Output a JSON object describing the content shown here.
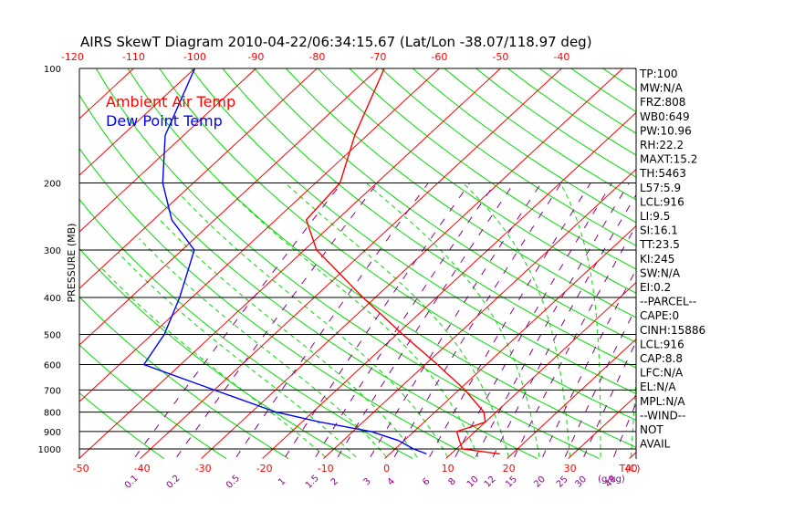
{
  "title": "AIRS SkewT Diagram 2010-04-22/06:34:15.67 (Lat/Lon -38.07/118.97 deg)",
  "colors": {
    "isotherm": "#ff0000",
    "dry_adiabat": "#00dd00",
    "moist_adiabat": "#00dd00",
    "mixing_ratio": "#8b008b",
    "temp_profile": "#ff0000",
    "dew_profile": "#0000ff",
    "isobar": "#000000"
  },
  "legend": [
    {
      "label": "Ambient Air Temp",
      "color": "#ff0000"
    },
    {
      "label": "Dew Point Temp",
      "color": "#0000ff"
    }
  ],
  "chart_data": {
    "type": "line",
    "title": "AIRS SkewT Diagram 2010-04-22/06:34:15.67 (Lat/Lon -38.07/118.97 deg)",
    "ylabel": "PRESSURE (MB)",
    "xlabel": "T(C)",
    "mixing_ratio_label": "(g/kg)",
    "y_scale": "log",
    "pressure_ticks": [
      100,
      200,
      300,
      400,
      500,
      600,
      700,
      800,
      900,
      1000
    ],
    "isobars": [
      200,
      300,
      400,
      500,
      600,
      700,
      800,
      900,
      1000
    ],
    "top_temp_ticks": [
      -120,
      -110,
      -100,
      -90,
      -80,
      -70,
      -60,
      -50,
      -40
    ],
    "bottom_temp_ticks": [
      -50,
      -40,
      -30,
      -20,
      -10,
      0,
      10,
      20,
      30,
      40
    ],
    "mixing_ratio_ticks": [
      "0.1",
      "0.2",
      "0.5",
      "1",
      "1.5",
      "2",
      "3",
      "4",
      "6",
      "8",
      "10",
      "12",
      "15",
      "20",
      "25",
      "30",
      "40"
    ],
    "series": [
      {
        "name": "Ambient Air Temp",
        "color": "#ff0000",
        "points": [
          {
            "p": 1030,
            "t": 18
          },
          {
            "p": 1000,
            "t": 11
          },
          {
            "p": 950,
            "t": 9
          },
          {
            "p": 900,
            "t": 7
          },
          {
            "p": 850,
            "t": 10
          },
          {
            "p": 800,
            "t": 8
          },
          {
            "p": 700,
            "t": 1
          },
          {
            "p": 600,
            "t": -8
          },
          {
            "p": 500,
            "t": -19
          },
          {
            "p": 400,
            "t": -32
          },
          {
            "p": 300,
            "t": -48
          },
          {
            "p": 250,
            "t": -55
          },
          {
            "p": 200,
            "t": -56
          },
          {
            "p": 150,
            "t": -62
          },
          {
            "p": 100,
            "t": -69
          }
        ]
      },
      {
        "name": "Dew Point Temp",
        "color": "#0000ff",
        "points": [
          {
            "p": 1030,
            "t": 6
          },
          {
            "p": 1000,
            "t": 3
          },
          {
            "p": 950,
            "t": -1
          },
          {
            "p": 900,
            "t": -7
          },
          {
            "p": 850,
            "t": -17
          },
          {
            "p": 800,
            "t": -26
          },
          {
            "p": 700,
            "t": -40
          },
          {
            "p": 600,
            "t": -56
          },
          {
            "p": 500,
            "t": -58
          },
          {
            "p": 400,
            "t": -62
          },
          {
            "p": 300,
            "t": -68
          },
          {
            "p": 250,
            "t": -77
          },
          {
            "p": 200,
            "t": -85
          },
          {
            "p": 150,
            "t": -93
          },
          {
            "p": 100,
            "t": -100
          }
        ]
      }
    ]
  },
  "indices": [
    "TP:100",
    "MW:N/A",
    "FRZ:808",
    "WB0:649",
    "PW:10.96",
    "RH:22.2",
    "MAXT:15.2",
    "TH:5463",
    "L57:5.9",
    "LCL:916",
    "LI:9.5",
    "SI:16.1",
    "TT:23.5",
    "KI:245",
    "SW:N/A",
    "EI:0.2",
    "--PARCEL--",
    "CAPE:0",
    "CINH:15886",
    "LCL:916",
    "CAP:8.8",
    "LFC:N/A",
    "EL:N/A",
    "MPL:N/A",
    "--WIND--",
    "NOT",
    "AVAIL"
  ]
}
